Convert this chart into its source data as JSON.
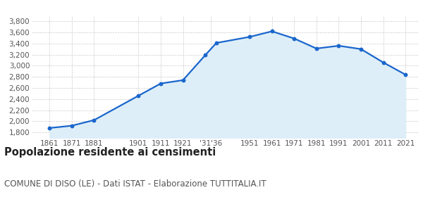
{
  "years": [
    1861,
    1871,
    1881,
    1901,
    1911,
    1921,
    1931,
    1936,
    1951,
    1961,
    1971,
    1981,
    1991,
    2001,
    2011,
    2021
  ],
  "population": [
    1878,
    1920,
    2020,
    2460,
    2680,
    2740,
    3190,
    3410,
    3520,
    3620,
    3490,
    3310,
    3360,
    3300,
    3060,
    2840
  ],
  "x_tick_positions": [
    1861,
    1871,
    1881,
    1901,
    1911,
    1921,
    1933.5,
    1951,
    1961,
    1971,
    1981,
    1991,
    2001,
    2011,
    2021
  ],
  "x_tick_labels": [
    "1861",
    "1871",
    "1881",
    "1901",
    "1911",
    "1921",
    "'31'36",
    "1951",
    "1961",
    "1971",
    "1981",
    "1991",
    "2001",
    "2011",
    "2021"
  ],
  "ylim": [
    1700,
    3900
  ],
  "yticks": [
    1800,
    2000,
    2200,
    2400,
    2600,
    2800,
    3000,
    3200,
    3400,
    3600,
    3800
  ],
  "line_color": "#1a66cc",
  "fill_color": "#ddeef8",
  "marker_color": "#1a66cc",
  "bg_color": "#ffffff",
  "grid_color": "#cccccc",
  "title": "Popolazione residente ai censimenti",
  "subtitle": "COMUNE DI DISO (LE) - Dati ISTAT - Elaborazione TUTTITALIA.IT",
  "title_fontsize": 10.5,
  "subtitle_fontsize": 8.5,
  "xlim_left": 1853,
  "xlim_right": 2027
}
